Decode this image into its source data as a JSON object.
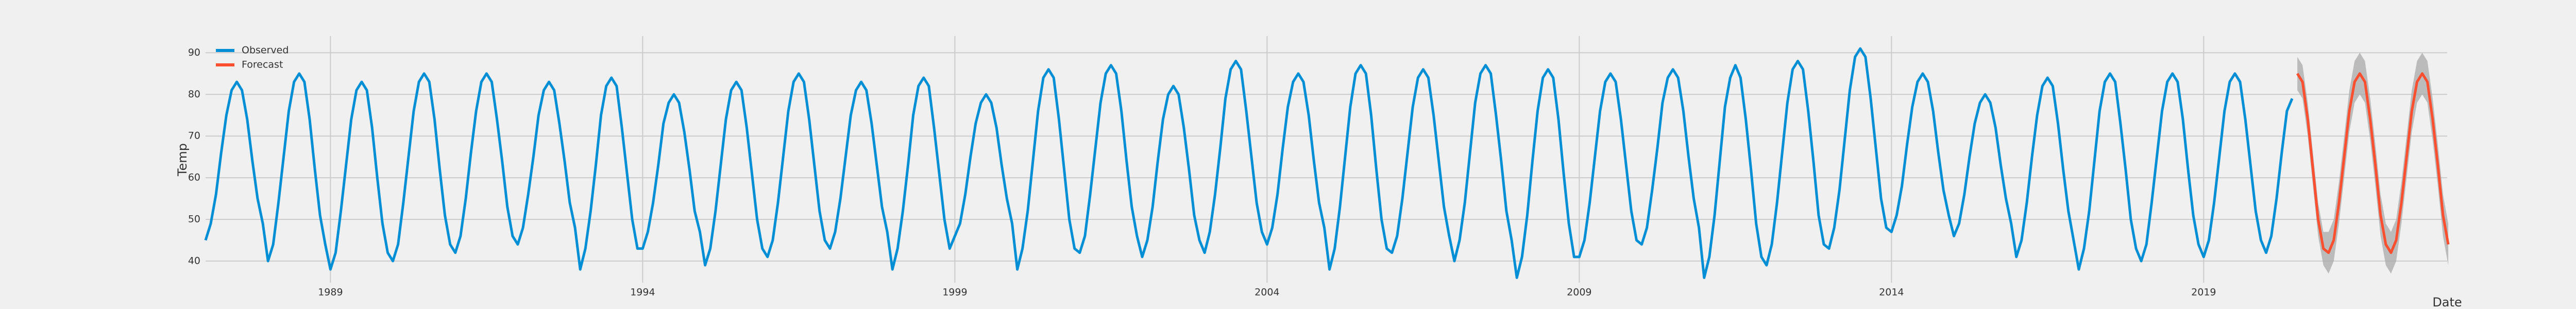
{
  "chart_data": {
    "type": "line",
    "xlabel": "Date",
    "ylabel": "Temp",
    "xlim": [
      1987,
      2022.9
    ],
    "ylim": [
      34.8,
      94
    ],
    "xticks": [
      1989,
      1994,
      1999,
      2004,
      2009,
      2014,
      2019
    ],
    "yticks": [
      40,
      50,
      60,
      70,
      80,
      90
    ],
    "grid": true,
    "legend": "upper left",
    "series": [
      {
        "name": "Observed",
        "color": "#008fd5",
        "x": [
          1987,
          1987.083,
          1987.167,
          1987.25,
          1987.333,
          1987.417,
          1987.5,
          1987.583,
          1987.667,
          1987.75,
          1987.833,
          1987.917,
          1988,
          1988.083,
          1988.167,
          1988.25,
          1988.333,
          1988.417,
          1988.5,
          1988.583,
          1988.667,
          1988.75,
          1988.833,
          1988.917,
          1989,
          1989.083,
          1989.167,
          1989.25,
          1989.333,
          1989.417,
          1989.5,
          1989.583,
          1989.667,
          1989.75,
          1989.833,
          1989.917,
          1990,
          1990.083,
          1990.167,
          1990.25,
          1990.333,
          1990.417,
          1990.5,
          1990.583,
          1990.667,
          1990.75,
          1990.833,
          1990.917,
          1991,
          1991.083,
          1991.167,
          1991.25,
          1991.333,
          1991.417,
          1991.5,
          1991.583,
          1991.667,
          1991.75,
          1991.833,
          1991.917,
          1992,
          1992.083,
          1992.167,
          1992.25,
          1992.333,
          1992.417,
          1992.5,
          1992.583,
          1992.667,
          1992.75,
          1992.833,
          1992.917,
          1993,
          1993.083,
          1993.167,
          1993.25,
          1993.333,
          1993.417,
          1993.5,
          1993.583,
          1993.667,
          1993.75,
          1993.833,
          1993.917,
          1994,
          1994.083,
          1994.167,
          1994.25,
          1994.333,
          1994.417,
          1994.5,
          1994.583,
          1994.667,
          1994.75,
          1994.833,
          1994.917,
          1995,
          1995.083,
          1995.167,
          1995.25,
          1995.333,
          1995.417,
          1995.5,
          1995.583,
          1995.667,
          1995.75,
          1995.833,
          1995.917,
          1996,
          1996.083,
          1996.167,
          1996.25,
          1996.333,
          1996.417,
          1996.5,
          1996.583,
          1996.667,
          1996.75,
          1996.833,
          1996.917,
          1997,
          1997.083,
          1997.167,
          1997.25,
          1997.333,
          1997.417,
          1997.5,
          1997.583,
          1997.667,
          1997.75,
          1997.833,
          1997.917,
          1998,
          1998.083,
          1998.167,
          1998.25,
          1998.333,
          1998.417,
          1998.5,
          1998.583,
          1998.667,
          1998.75,
          1998.833,
          1998.917,
          1999,
          1999.083,
          1999.167,
          1999.25,
          1999.333,
          1999.417,
          1999.5,
          1999.583,
          1999.667,
          1999.75,
          1999.833,
          1999.917,
          2000,
          2000.083,
          2000.167,
          2000.25,
          2000.333,
          2000.417,
          2000.5,
          2000.583,
          2000.667,
          2000.75,
          2000.833,
          2000.917,
          2001,
          2001.083,
          2001.167,
          2001.25,
          2001.333,
          2001.417,
          2001.5,
          2001.583,
          2001.667,
          2001.75,
          2001.833,
          2001.917,
          2002,
          2002.083,
          2002.167,
          2002.25,
          2002.333,
          2002.417,
          2002.5,
          2002.583,
          2002.667,
          2002.75,
          2002.833,
          2002.917,
          2003,
          2003.083,
          2003.167,
          2003.25,
          2003.333,
          2003.417,
          2003.5,
          2003.583,
          2003.667,
          2003.75,
          2003.833,
          2003.917,
          2004,
          2004.083,
          2004.167,
          2004.25,
          2004.333,
          2004.417,
          2004.5,
          2004.583,
          2004.667,
          2004.75,
          2004.833,
          2004.917,
          2005,
          2005.083,
          2005.167,
          2005.25,
          2005.333,
          2005.417,
          2005.5,
          2005.583,
          2005.667,
          2005.75,
          2005.833,
          2005.917,
          2006,
          2006.083,
          2006.167,
          2006.25,
          2006.333,
          2006.417,
          2006.5,
          2006.583,
          2006.667,
          2006.75,
          2006.833,
          2006.917,
          2007,
          2007.083,
          2007.167,
          2007.25,
          2007.333,
          2007.417,
          2007.5,
          2007.583,
          2007.667,
          2007.75,
          2007.833,
          2007.917,
          2008,
          2008.083,
          2008.167,
          2008.25,
          2008.333,
          2008.417,
          2008.5,
          2008.583,
          2008.667,
          2008.75,
          2008.833,
          2008.917,
          2009,
          2009.083,
          2009.167,
          2009.25,
          2009.333,
          2009.417,
          2009.5,
          2009.583,
          2009.667,
          2009.75,
          2009.833,
          2009.917,
          2010,
          2010.083,
          2010.167,
          2010.25,
          2010.333,
          2010.417,
          2010.5,
          2010.583,
          2010.667,
          2010.75,
          2010.833,
          2010.917,
          2011,
          2011.083,
          2011.167,
          2011.25,
          2011.333,
          2011.417,
          2011.5,
          2011.583,
          2011.667,
          2011.75,
          2011.833,
          2011.917,
          2012,
          2012.083,
          2012.167,
          2012.25,
          2012.333,
          2012.417,
          2012.5,
          2012.583,
          2012.667,
          2012.75,
          2012.833,
          2012.917,
          2013,
          2013.083,
          2013.167,
          2013.25,
          2013.333,
          2013.417,
          2013.5,
          2013.583,
          2013.667,
          2013.75,
          2013.833,
          2013.917,
          2014,
          2014.083,
          2014.167,
          2014.25,
          2014.333,
          2014.417,
          2014.5,
          2014.583,
          2014.667,
          2014.75,
          2014.833,
          2014.917,
          2015,
          2015.083,
          2015.167,
          2015.25,
          2015.333,
          2015.417,
          2015.5,
          2015.583,
          2015.667,
          2015.75,
          2015.833,
          2015.917,
          2016,
          2016.083,
          2016.167,
          2016.25,
          2016.333,
          2016.417,
          2016.5,
          2016.583,
          2016.667,
          2016.75,
          2016.833,
          2016.917,
          2017,
          2017.083,
          2017.167,
          2017.25,
          2017.333,
          2017.417,
          2017.5,
          2017.583,
          2017.667,
          2017.75,
          2017.833,
          2017.917,
          2018,
          2018.083,
          2018.167,
          2018.25,
          2018.333,
          2018.417,
          2018.5,
          2018.583,
          2018.667,
          2018.75,
          2018.833,
          2018.917,
          2019,
          2019.083,
          2019.167,
          2019.25,
          2019.333,
          2019.417,
          2019.5,
          2019.583,
          2019.667,
          2019.75,
          2019.833,
          2019.917,
          2020,
          2020.083,
          2020.167,
          2020.25,
          2020.333,
          2020.417
        ],
        "values": [
          45,
          49,
          56,
          66,
          75,
          81,
          83,
          81,
          74,
          64,
          55,
          49,
          40,
          44,
          54,
          65,
          76,
          83,
          85,
          83,
          74,
          62,
          51,
          44,
          38,
          42,
          52,
          63,
          74,
          81,
          83,
          81,
          72,
          60,
          49,
          42,
          40,
          44,
          54,
          65,
          76,
          83,
          85,
          83,
          74,
          62,
          51,
          44,
          42,
          46,
          55,
          66,
          76,
          83,
          85,
          83,
          74,
          64,
          53,
          46,
          44,
          48,
          56,
          65,
          75,
          81,
          83,
          81,
          73,
          64,
          54,
          48,
          38,
          43,
          52,
          63,
          75,
          82,
          84,
          82,
          72,
          61,
          50,
          43,
          43,
          47,
          54,
          63,
          73,
          78,
          80,
          78,
          71,
          62,
          52,
          47,
          39,
          43,
          52,
          63,
          74,
          81,
          83,
          81,
          72,
          61,
          50,
          43,
          41,
          45,
          54,
          65,
          76,
          83,
          85,
          83,
          74,
          63,
          52,
          45,
          43,
          47,
          55,
          65,
          75,
          81,
          83,
          81,
          73,
          63,
          53,
          47,
          38,
          43,
          52,
          63,
          75,
          82,
          84,
          82,
          72,
          61,
          50,
          43,
          46,
          49,
          56,
          65,
          73,
          78,
          80,
          78,
          72,
          63,
          55,
          49,
          38,
          43,
          52,
          64,
          76,
          84,
          86,
          84,
          74,
          62,
          50,
          43,
          42,
          46,
          56,
          67,
          78,
          85,
          87,
          85,
          76,
          64,
          53,
          46,
          41,
          45,
          53,
          64,
          74,
          80,
          82,
          80,
          72,
          62,
          51,
          45,
          42,
          47,
          56,
          67,
          79,
          86,
          88,
          86,
          76,
          65,
          54,
          47,
          44,
          48,
          56,
          67,
          77,
          83,
          85,
          83,
          75,
          64,
          54,
          48,
          38,
          43,
          53,
          65,
          77,
          85,
          87,
          85,
          75,
          62,
          50,
          43,
          42,
          46,
          55,
          66,
          77,
          84,
          86,
          84,
          75,
          64,
          53,
          46,
          40,
          45,
          54,
          66,
          78,
          85,
          87,
          85,
          75,
          64,
          52,
          45,
          36,
          41,
          51,
          64,
          76,
          84,
          86,
          84,
          74,
          61,
          49,
          41,
          41,
          45,
          54,
          65,
          76,
          83,
          85,
          83,
          74,
          63,
          52,
          45,
          44,
          48,
          57,
          67,
          78,
          84,
          86,
          84,
          76,
          65,
          55,
          48,
          36,
          41,
          51,
          64,
          77,
          84,
          87,
          84,
          74,
          62,
          49,
          41,
          39,
          44,
          54,
          66,
          78,
          86,
          88,
          86,
          76,
          64,
          51,
          44,
          43,
          48,
          57,
          69,
          81,
          89,
          91,
          89,
          79,
          67,
          55,
          48,
          47,
          51,
          58,
          68,
          77,
          83,
          85,
          83,
          76,
          66,
          57,
          51,
          46,
          49,
          56,
          65,
          73,
          78,
          80,
          78,
          72,
          63,
          55,
          49,
          41,
          45,
          54,
          65,
          75,
          82,
          84,
          82,
          73,
          62,
          52,
          45,
          38,
          43,
          52,
          64,
          76,
          83,
          85,
          83,
          73,
          62,
          50,
          43,
          40,
          44,
          54,
          65,
          76,
          83,
          85,
          83,
          74,
          62,
          51,
          44,
          41,
          45,
          54,
          65,
          76,
          83,
          85,
          83,
          74,
          63,
          52,
          45,
          42,
          46,
          55,
          66,
          76,
          79
        ]
      },
      {
        "name": "Forecast",
        "color": "#fc4f30",
        "band_color": "#a9a9a9",
        "x": [
          2020.5,
          2020.583,
          2020.667,
          2020.75,
          2020.833,
          2020.917,
          2021,
          2021.083,
          2021.167,
          2021.25,
          2021.333,
          2021.417,
          2021.5,
          2021.583,
          2021.667,
          2021.75,
          2021.833,
          2021.917,
          2022,
          2022.083,
          2022.167,
          2022.25,
          2022.333,
          2022.417,
          2022.5,
          2022.583,
          2022.667,
          2022.75,
          2022.833,
          2022.917
        ],
        "values": [
          85,
          83,
          74,
          62,
          50,
          43,
          42,
          45,
          54,
          65,
          76,
          83,
          85,
          83,
          74,
          63,
          51,
          44,
          42,
          45,
          54,
          65,
          76,
          83,
          85,
          83,
          74,
          63,
          51,
          44
        ],
        "lower": [
          81,
          79,
          70,
          58,
          46,
          39,
          37,
          40,
          49,
          60,
          71,
          78,
          80,
          78,
          69,
          58,
          46,
          39,
          37,
          40,
          49,
          60,
          71,
          78,
          80,
          78,
          69,
          58,
          46,
          39
        ],
        "upper": [
          89,
          87,
          78,
          66,
          54,
          47,
          47,
          50,
          59,
          70,
          81,
          88,
          90,
          88,
          79,
          68,
          56,
          49,
          47,
          50,
          59,
          70,
          81,
          88,
          90,
          88,
          79,
          68,
          56,
          49
        ]
      }
    ]
  }
}
